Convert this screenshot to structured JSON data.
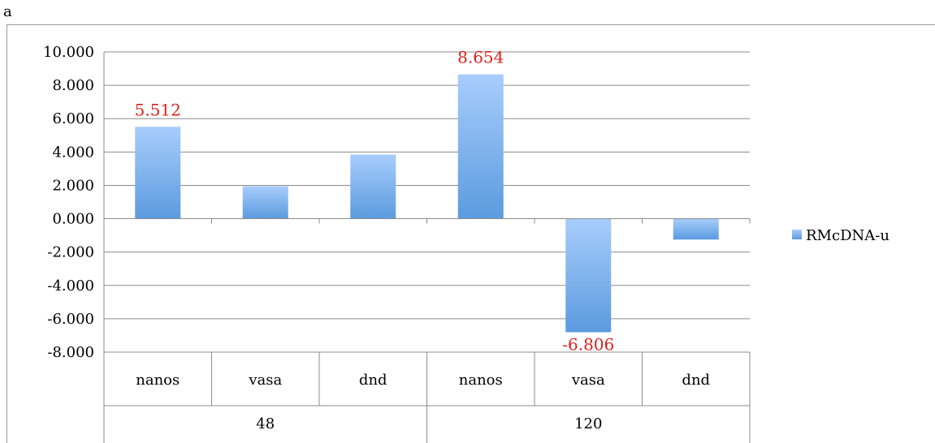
{
  "panel_label": "a",
  "chart_data": {
    "type": "bar",
    "title": "",
    "xlabel": "",
    "ylabel": "",
    "ylim": [
      -8,
      10
    ],
    "yticks": [
      10,
      8,
      6,
      4,
      2,
      0,
      -2,
      -4,
      -6,
      -8
    ],
    "ytick_labels": [
      "10.000",
      "8.000",
      "6.000",
      "4.000",
      "2.000",
      "0.000",
      "-2.000",
      "-4.000",
      "-6.000",
      "-8.000"
    ],
    "groups": [
      {
        "label": "48",
        "categories": [
          "nanos",
          "vasa",
          "dnd"
        ]
      },
      {
        "label": "120",
        "categories": [
          "nanos",
          "vasa",
          "dnd"
        ]
      }
    ],
    "categories": [
      "nanos",
      "vasa",
      "dnd",
      "nanos",
      "vasa",
      "dnd"
    ],
    "series": [
      {
        "name": "RMcDNA-u",
        "values": [
          5.512,
          1.95,
          3.85,
          8.654,
          -6.806,
          -1.25
        ]
      }
    ],
    "data_labels": [
      "5.512",
      "",
      "",
      "8.654",
      "-6.806",
      ""
    ],
    "grid": true,
    "legend_position": "right",
    "colors": {
      "bar_top": "#a8cdfc",
      "bar_bottom": "#5b9bdf",
      "label": "#e0201b",
      "grid": "#8c8c8c"
    }
  }
}
